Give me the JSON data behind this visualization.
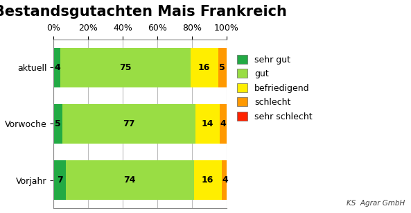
{
  "title": "Bestandsgutachten Mais Frankreich",
  "categories": [
    "aktuell",
    "Vorwoche",
    "Vorjahr"
  ],
  "segments": {
    "sehr gut": [
      4,
      5,
      7
    ],
    "gut": [
      75,
      77,
      74
    ],
    "befriedigend": [
      16,
      14,
      16
    ],
    "schlecht": [
      5,
      4,
      4
    ],
    "sehr schlecht": [
      0,
      0,
      0
    ]
  },
  "colors": {
    "sehr gut": "#22aa44",
    "gut": "#99dd44",
    "befriedigend": "#ffee00",
    "schlecht": "#ff9900",
    "sehr schlecht": "#ff2200"
  },
  "legend_order": [
    "sehr gut",
    "gut",
    "befriedigend",
    "schlecht",
    "sehr schlecht"
  ],
  "xlim": [
    0,
    100
  ],
  "xticks": [
    0,
    20,
    40,
    60,
    80,
    100
  ],
  "xtick_labels": [
    "0%",
    "20%",
    "40%",
    "60%",
    "80%",
    "100%"
  ],
  "background_color": "#ffffff",
  "bar_height": 0.7,
  "title_fontsize": 15,
  "label_fontsize": 9,
  "legend_fontsize": 9,
  "tick_fontsize": 9,
  "text_color": "#000000",
  "grid_color": "#bbbbbb",
  "border_color": "#888888"
}
